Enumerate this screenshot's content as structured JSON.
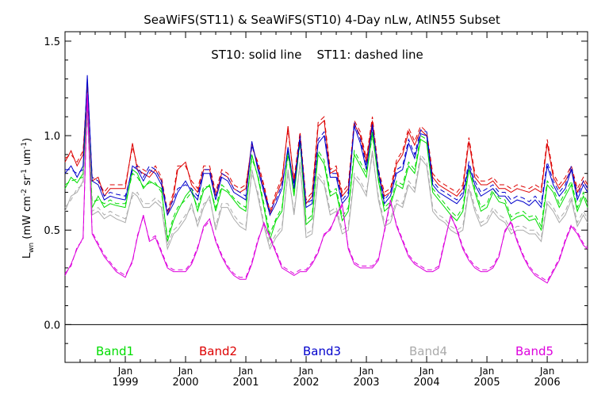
{
  "chart_data": {
    "type": "line",
    "title": "SeaWiFS(ST11) & SeaWiFS(ST10) 4-Day nLw, AtlN55 Subset",
    "annotation": "ST10: solid line    ST11: dashed line",
    "ylabel": "L_wn (mW cm^-2 sr^-1 um^-1)",
    "ylabel_parts": {
      "main": "L",
      "sub": "wn",
      "open": " (mW cm",
      "sup1": "-2",
      "mid": " sr",
      "sup2": "-1",
      "end": " um",
      "sup3": "-1",
      "close": ")"
    },
    "xlabel": "",
    "xlim": [
      1998.0,
      2006.67
    ],
    "ylim": [
      -0.2,
      1.55
    ],
    "yticks": [
      {
        "value": 0.0,
        "label": "0.0"
      },
      {
        "value": 0.5,
        "label": "0.5"
      },
      {
        "value": 1.0,
        "label": "1.0"
      },
      {
        "value": 1.5,
        "label": "1.5"
      }
    ],
    "xticks": [
      {
        "value": 1999.0,
        "label1": "Jan",
        "label2": "1999"
      },
      {
        "value": 2000.0,
        "label1": "Jan",
        "label2": "2000"
      },
      {
        "value": 2001.0,
        "label1": "Jan",
        "label2": "2001"
      },
      {
        "value": 2002.0,
        "label1": "Jan",
        "label2": "2002"
      },
      {
        "value": 2003.0,
        "label1": "Jan",
        "label2": "2003"
      },
      {
        "value": 2004.0,
        "label1": "Jan",
        "label2": "2004"
      },
      {
        "value": 2005.0,
        "label1": "Jan",
        "label2": "2005"
      },
      {
        "value": 2006.0,
        "label1": "Jan",
        "label2": "2006"
      }
    ],
    "zero_line": 0.0,
    "legend_placement": "bottom inside",
    "x": [
      1998.0,
      1998.1,
      1998.2,
      1998.3,
      1998.37,
      1998.45,
      1998.55,
      1998.65,
      1998.75,
      1998.85,
      1999.0,
      1999.12,
      1999.2,
      1999.3,
      1999.4,
      1999.5,
      1999.6,
      1999.7,
      1999.8,
      1999.87,
      2000.0,
      2000.1,
      2000.2,
      2000.3,
      2000.4,
      2000.5,
      2000.6,
      2000.7,
      2000.8,
      2000.9,
      2001.0,
      2001.1,
      2001.2,
      2001.3,
      2001.4,
      2001.5,
      2001.6,
      2001.7,
      2001.8,
      2001.9,
      2002.0,
      2002.1,
      2002.2,
      2002.3,
      2002.4,
      2002.5,
      2002.6,
      2002.7,
      2002.8,
      2002.9,
      2003.0,
      2003.1,
      2003.2,
      2003.3,
      2003.4,
      2003.5,
      2003.6,
      2003.7,
      2003.8,
      2003.9,
      2004.0,
      2004.1,
      2004.2,
      2004.3,
      2004.4,
      2004.5,
      2004.6,
      2004.7,
      2004.8,
      2004.9,
      2005.0,
      2005.1,
      2005.2,
      2005.3,
      2005.4,
      2005.5,
      2005.6,
      2005.7,
      2005.8,
      2005.9,
      2006.0,
      2006.1,
      2006.2,
      2006.3,
      2006.4,
      2006.5,
      2006.6,
      2006.67
    ],
    "series": [
      {
        "name": "Band1",
        "color": "#00dd00",
        "st10": [
          0.72,
          0.78,
          0.75,
          0.8,
          1.2,
          0.62,
          0.68,
          0.62,
          0.64,
          0.63,
          0.62,
          0.82,
          0.8,
          0.72,
          0.76,
          0.74,
          0.72,
          0.44,
          0.55,
          0.6,
          0.68,
          0.72,
          0.6,
          0.71,
          0.74,
          0.6,
          0.72,
          0.7,
          0.66,
          0.62,
          0.6,
          0.9,
          0.78,
          0.62,
          0.45,
          0.55,
          0.6,
          0.92,
          0.68,
          0.98,
          0.53,
          0.56,
          0.9,
          0.85,
          0.68,
          0.7,
          0.55,
          0.6,
          0.9,
          0.84,
          0.78,
          1.02,
          0.76,
          0.6,
          0.63,
          0.74,
          0.72,
          0.84,
          0.8,
          0.98,
          0.96,
          0.7,
          0.66,
          0.62,
          0.58,
          0.55,
          0.6,
          0.82,
          0.7,
          0.6,
          0.62,
          0.7,
          0.65,
          0.64,
          0.55,
          0.57,
          0.58,
          0.55,
          0.56,
          0.5,
          0.74,
          0.7,
          0.62,
          0.68,
          0.74,
          0.6,
          0.68,
          0.62
        ],
        "st11": [
          0.74,
          0.76,
          0.77,
          0.78,
          1.16,
          0.65,
          0.66,
          0.64,
          0.66,
          0.64,
          0.64,
          0.8,
          0.78,
          0.73,
          0.75,
          0.75,
          0.7,
          0.46,
          0.57,
          0.62,
          0.66,
          0.7,
          0.62,
          0.73,
          0.73,
          0.62,
          0.74,
          0.71,
          0.67,
          0.64,
          0.62,
          0.88,
          0.79,
          0.64,
          0.48,
          0.56,
          0.62,
          0.9,
          0.7,
          0.96,
          0.55,
          0.58,
          0.92,
          0.87,
          0.7,
          0.72,
          0.57,
          0.62,
          0.92,
          0.86,
          0.8,
          1.0,
          0.78,
          0.62,
          0.65,
          0.76,
          0.74,
          0.86,
          0.82,
          1.0,
          0.98,
          0.72,
          0.68,
          0.64,
          0.6,
          0.57,
          0.62,
          0.84,
          0.72,
          0.62,
          0.64,
          0.72,
          0.67,
          0.66,
          0.57,
          0.59,
          0.6,
          0.57,
          0.58,
          0.52,
          0.76,
          0.72,
          0.64,
          0.7,
          0.76,
          0.62,
          0.7,
          0.64
        ]
      },
      {
        "name": "Band2",
        "color": "#dd0000",
        "st10": [
          0.86,
          0.92,
          0.84,
          0.9,
          1.28,
          0.76,
          0.78,
          0.68,
          0.72,
          0.72,
          0.72,
          0.96,
          0.82,
          0.8,
          0.78,
          0.82,
          0.76,
          0.58,
          0.68,
          0.82,
          0.86,
          0.74,
          0.7,
          0.82,
          0.82,
          0.68,
          0.8,
          0.78,
          0.72,
          0.7,
          0.72,
          0.96,
          0.84,
          0.72,
          0.58,
          0.68,
          0.76,
          1.05,
          0.75,
          1.0,
          0.64,
          0.68,
          1.05,
          1.08,
          0.8,
          0.82,
          0.68,
          0.72,
          1.06,
          1.0,
          0.86,
          1.08,
          0.8,
          0.68,
          0.7,
          0.85,
          0.9,
          1.02,
          0.95,
          1.03,
          1.0,
          0.78,
          0.74,
          0.72,
          0.7,
          0.68,
          0.72,
          0.97,
          0.78,
          0.74,
          0.74,
          0.76,
          0.72,
          0.72,
          0.7,
          0.72,
          0.71,
          0.7,
          0.72,
          0.7,
          0.96,
          0.78,
          0.72,
          0.76,
          0.82,
          0.7,
          0.76,
          0.72
        ],
        "st11": [
          0.88,
          0.9,
          0.86,
          0.92,
          1.26,
          0.78,
          0.76,
          0.7,
          0.74,
          0.74,
          0.74,
          0.94,
          0.84,
          0.82,
          0.8,
          0.84,
          0.78,
          0.6,
          0.7,
          0.84,
          0.84,
          0.76,
          0.72,
          0.84,
          0.84,
          0.7,
          0.82,
          0.8,
          0.74,
          0.72,
          0.74,
          0.94,
          0.86,
          0.74,
          0.6,
          0.7,
          0.78,
          1.03,
          0.77,
          1.02,
          0.66,
          0.7,
          1.07,
          1.1,
          0.82,
          0.84,
          0.7,
          0.74,
          1.08,
          1.02,
          0.88,
          1.1,
          0.82,
          0.7,
          0.72,
          0.87,
          0.92,
          1.04,
          0.97,
          1.05,
          1.02,
          0.8,
          0.76,
          0.74,
          0.72,
          0.7,
          0.74,
          0.99,
          0.8,
          0.76,
          0.76,
          0.78,
          0.74,
          0.74,
          0.72,
          0.74,
          0.73,
          0.72,
          0.74,
          0.72,
          0.98,
          0.8,
          0.74,
          0.78,
          0.84,
          0.72,
          0.78,
          0.74
        ]
      },
      {
        "name": "Band3",
        "color": "#0000cc",
        "st10": [
          0.8,
          0.84,
          0.78,
          0.84,
          1.32,
          0.76,
          0.74,
          0.66,
          0.68,
          0.67,
          0.66,
          0.84,
          0.82,
          0.76,
          0.82,
          0.8,
          0.74,
          0.58,
          0.64,
          0.7,
          0.76,
          0.7,
          0.66,
          0.8,
          0.8,
          0.66,
          0.78,
          0.76,
          0.7,
          0.68,
          0.66,
          0.97,
          0.82,
          0.7,
          0.58,
          0.64,
          0.72,
          0.94,
          0.72,
          0.98,
          0.62,
          0.64,
          0.96,
          1.0,
          0.78,
          0.78,
          0.64,
          0.68,
          1.05,
          0.96,
          0.82,
          1.06,
          0.8,
          0.64,
          0.68,
          0.8,
          0.82,
          0.96,
          0.88,
          1.01,
          1.0,
          0.74,
          0.7,
          0.68,
          0.66,
          0.64,
          0.68,
          0.84,
          0.74,
          0.68,
          0.7,
          0.72,
          0.68,
          0.68,
          0.64,
          0.66,
          0.65,
          0.63,
          0.66,
          0.62,
          0.84,
          0.74,
          0.68,
          0.72,
          0.82,
          0.66,
          0.74,
          0.7
        ],
        "st11": [
          0.82,
          0.82,
          0.8,
          0.82,
          1.3,
          0.78,
          0.76,
          0.68,
          0.7,
          0.69,
          0.68,
          0.82,
          0.84,
          0.78,
          0.84,
          0.82,
          0.76,
          0.6,
          0.66,
          0.72,
          0.74,
          0.72,
          0.68,
          0.82,
          0.82,
          0.68,
          0.8,
          0.78,
          0.72,
          0.7,
          0.68,
          0.95,
          0.84,
          0.72,
          0.6,
          0.66,
          0.74,
          0.92,
          0.74,
          1.0,
          0.64,
          0.66,
          0.98,
          1.02,
          0.8,
          0.8,
          0.66,
          0.7,
          1.07,
          0.98,
          0.84,
          1.04,
          0.82,
          0.66,
          0.7,
          0.82,
          0.84,
          0.98,
          0.9,
          1.03,
          1.02,
          0.76,
          0.72,
          0.7,
          0.68,
          0.66,
          0.7,
          0.86,
          0.76,
          0.7,
          0.72,
          0.74,
          0.7,
          0.7,
          0.66,
          0.68,
          0.67,
          0.65,
          0.68,
          0.64,
          0.86,
          0.76,
          0.7,
          0.74,
          0.84,
          0.68,
          0.76,
          0.72
        ]
      },
      {
        "name": "Band4",
        "color": "#aaaaaa",
        "st10": [
          0.6,
          0.68,
          0.7,
          0.76,
          1.12,
          0.58,
          0.6,
          0.56,
          0.58,
          0.56,
          0.54,
          0.7,
          0.68,
          0.62,
          0.62,
          0.65,
          0.62,
          0.4,
          0.48,
          0.5,
          0.56,
          0.64,
          0.52,
          0.62,
          0.68,
          0.5,
          0.62,
          0.62,
          0.56,
          0.52,
          0.5,
          0.82,
          0.68,
          0.52,
          0.4,
          0.46,
          0.5,
          0.82,
          0.58,
          0.86,
          0.46,
          0.48,
          0.78,
          0.74,
          0.58,
          0.6,
          0.48,
          0.5,
          0.78,
          0.74,
          0.68,
          0.92,
          0.66,
          0.52,
          0.54,
          0.64,
          0.62,
          0.74,
          0.7,
          0.88,
          0.84,
          0.6,
          0.56,
          0.54,
          0.5,
          0.48,
          0.5,
          0.72,
          0.6,
          0.52,
          0.54,
          0.6,
          0.56,
          0.54,
          0.48,
          0.5,
          0.5,
          0.48,
          0.48,
          0.44,
          0.64,
          0.6,
          0.54,
          0.58,
          0.66,
          0.52,
          0.58,
          0.54
        ],
        "st11": [
          0.62,
          0.66,
          0.72,
          0.74,
          1.1,
          0.6,
          0.62,
          0.58,
          0.6,
          0.58,
          0.56,
          0.68,
          0.7,
          0.64,
          0.64,
          0.67,
          0.64,
          0.42,
          0.5,
          0.52,
          0.58,
          0.62,
          0.54,
          0.64,
          0.66,
          0.52,
          0.64,
          0.64,
          0.58,
          0.54,
          0.52,
          0.8,
          0.7,
          0.54,
          0.42,
          0.48,
          0.52,
          0.8,
          0.6,
          0.84,
          0.48,
          0.5,
          0.8,
          0.76,
          0.6,
          0.62,
          0.5,
          0.52,
          0.8,
          0.76,
          0.7,
          0.9,
          0.68,
          0.54,
          0.56,
          0.66,
          0.64,
          0.76,
          0.72,
          0.9,
          0.86,
          0.62,
          0.58,
          0.56,
          0.52,
          0.5,
          0.52,
          0.74,
          0.62,
          0.54,
          0.56,
          0.62,
          0.58,
          0.56,
          0.5,
          0.52,
          0.52,
          0.5,
          0.5,
          0.46,
          0.66,
          0.62,
          0.56,
          0.6,
          0.68,
          0.54,
          0.6,
          0.56
        ]
      },
      {
        "name": "Band5",
        "color": "#dd00dd",
        "st10": [
          0.26,
          0.32,
          0.4,
          0.46,
          1.22,
          0.48,
          0.42,
          0.36,
          0.32,
          0.28,
          0.25,
          0.34,
          0.46,
          0.58,
          0.44,
          0.46,
          0.38,
          0.3,
          0.28,
          0.28,
          0.28,
          0.32,
          0.4,
          0.52,
          0.56,
          0.44,
          0.36,
          0.3,
          0.26,
          0.24,
          0.24,
          0.32,
          0.44,
          0.54,
          0.46,
          0.38,
          0.3,
          0.28,
          0.26,
          0.28,
          0.28,
          0.32,
          0.38,
          0.48,
          0.5,
          0.58,
          0.64,
          0.4,
          0.32,
          0.3,
          0.3,
          0.3,
          0.34,
          0.5,
          0.66,
          0.52,
          0.44,
          0.36,
          0.32,
          0.3,
          0.28,
          0.28,
          0.3,
          0.44,
          0.58,
          0.5,
          0.4,
          0.34,
          0.3,
          0.28,
          0.28,
          0.3,
          0.36,
          0.5,
          0.54,
          0.44,
          0.36,
          0.3,
          0.26,
          0.24,
          0.22,
          0.28,
          0.34,
          0.44,
          0.52,
          0.48,
          0.42,
          0.4
        ],
        "st11": [
          0.27,
          0.31,
          0.41,
          0.45,
          1.2,
          0.49,
          0.43,
          0.37,
          0.33,
          0.29,
          0.26,
          0.33,
          0.47,
          0.57,
          0.45,
          0.47,
          0.39,
          0.31,
          0.29,
          0.29,
          0.29,
          0.33,
          0.41,
          0.51,
          0.55,
          0.45,
          0.37,
          0.31,
          0.27,
          0.25,
          0.25,
          0.33,
          0.45,
          0.53,
          0.47,
          0.39,
          0.31,
          0.29,
          0.27,
          0.29,
          0.29,
          0.33,
          0.39,
          0.47,
          0.51,
          0.57,
          0.63,
          0.41,
          0.33,
          0.31,
          0.31,
          0.31,
          0.35,
          0.49,
          0.65,
          0.53,
          0.45,
          0.37,
          0.33,
          0.31,
          0.29,
          0.29,
          0.31,
          0.45,
          0.57,
          0.51,
          0.41,
          0.35,
          0.31,
          0.29,
          0.29,
          0.31,
          0.37,
          0.49,
          0.55,
          0.45,
          0.37,
          0.31,
          0.27,
          0.25,
          0.23,
          0.29,
          0.35,
          0.45,
          0.53,
          0.49,
          0.43,
          0.41
        ]
      }
    ]
  }
}
